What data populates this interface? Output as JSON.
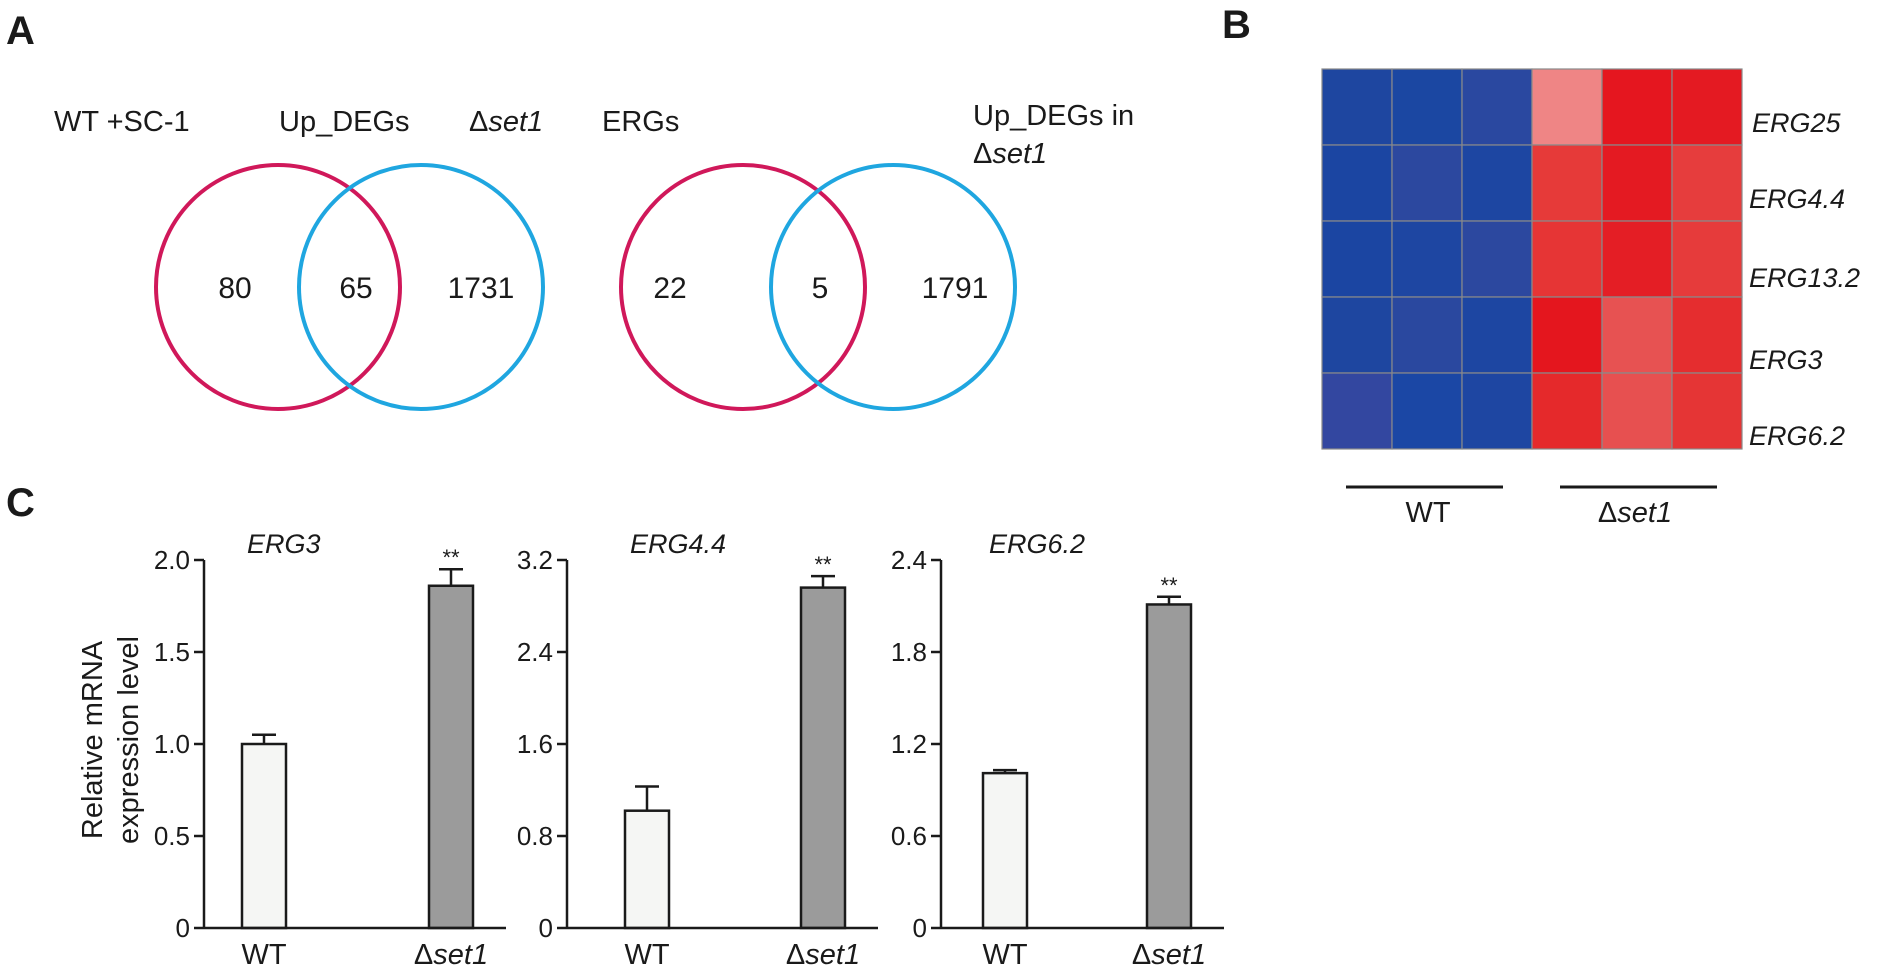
{
  "panels": {
    "a": "A",
    "b": "B",
    "c": "C"
  },
  "venn": [
    {
      "left_label": "WT +SC-1",
      "center_label": "Up_DEGs",
      "right_label_prefix": "Δ",
      "right_label_italic": "set1",
      "right_label_line2_prefix": "",
      "right_label_line2_italic": "",
      "left_only": "80",
      "overlap": "65",
      "right_only": "1731"
    },
    {
      "left_label": "ERGs",
      "center_label": "",
      "right_label_prefix": "Up_DEGs in",
      "right_label_italic": "",
      "right_label_line2_prefix": "Δ",
      "right_label_line2_italic": "set1",
      "left_only": "22",
      "overlap": "5",
      "right_only": "1791"
    }
  ],
  "colors": {
    "venn_left": "#d0185a",
    "venn_right": "#1fa6e0",
    "bar_wt": "#f5f6f4",
    "bar_set1": "#9b9b9b"
  },
  "heatmap": {
    "rows": [
      "ERG25",
      "ERG4.4",
      "ERG13.2",
      "ERG3",
      "ERG6.2"
    ],
    "group_wt": "WT",
    "group_set1_prefix": "Δ",
    "group_set1_italic": "set1",
    "cell_colors": [
      [
        "#1e46a0",
        "#1b47a2",
        "#2a48a0",
        "#ef8585",
        "#e5161f",
        "#e41a22"
      ],
      [
        "#1b45a2",
        "#2c489f",
        "#1d46a2",
        "#e63a39",
        "#e41a22",
        "#e63d3d"
      ],
      [
        "#1b45a2",
        "#1e46a2",
        "#2c489f",
        "#e63535",
        "#e41e25",
        "#e63b3b"
      ],
      [
        "#1e46a0",
        "#2a489f",
        "#1d46a2",
        "#e4161e",
        "#e75252",
        "#e52d2f"
      ],
      [
        "#3347a0",
        "#1b47a5",
        "#1e46a2",
        "#e5292b",
        "#e75050",
        "#e53535"
      ]
    ]
  },
  "ylabel_line1": "Relative mRNA",
  "ylabel_line2": "expression level",
  "chart_data": [
    {
      "type": "bar",
      "title": "ERG3",
      "categories": [
        "WT",
        "Δset1"
      ],
      "values": [
        1.0,
        1.86
      ],
      "errors": [
        0.05,
        0.09
      ],
      "significance": [
        "",
        "**"
      ],
      "ylim": [
        0,
        2.0
      ],
      "yticks": [
        "0",
        "0.5",
        "1.0",
        "1.5",
        "2.0"
      ],
      "yticks_values": [
        0,
        0.5,
        1.0,
        1.5,
        2.0
      ],
      "ylabel": "Relative mRNA expression level"
    },
    {
      "type": "bar",
      "title": "ERG4.4",
      "categories": [
        "WT",
        "Δset1"
      ],
      "values": [
        1.02,
        2.96
      ],
      "errors": [
        0.21,
        0.1
      ],
      "significance": [
        "",
        "**"
      ],
      "ylim": [
        0,
        3.2
      ],
      "yticks": [
        "0",
        "0.8",
        "1.6",
        "2.4",
        "3.2"
      ],
      "yticks_values": [
        0,
        0.8,
        1.6,
        2.4,
        3.2
      ]
    },
    {
      "type": "bar",
      "title": "ERG6.2",
      "categories": [
        "WT",
        "Δset1"
      ],
      "values": [
        1.01,
        2.11
      ],
      "errors": [
        0.02,
        0.05
      ],
      "significance": [
        "",
        "**"
      ],
      "ylim": [
        0,
        2.4
      ],
      "yticks": [
        "0",
        "0.6",
        "1.2",
        "1.8",
        "2.4"
      ],
      "yticks_values": [
        0,
        0.6,
        1.2,
        1.8,
        2.4
      ]
    }
  ]
}
